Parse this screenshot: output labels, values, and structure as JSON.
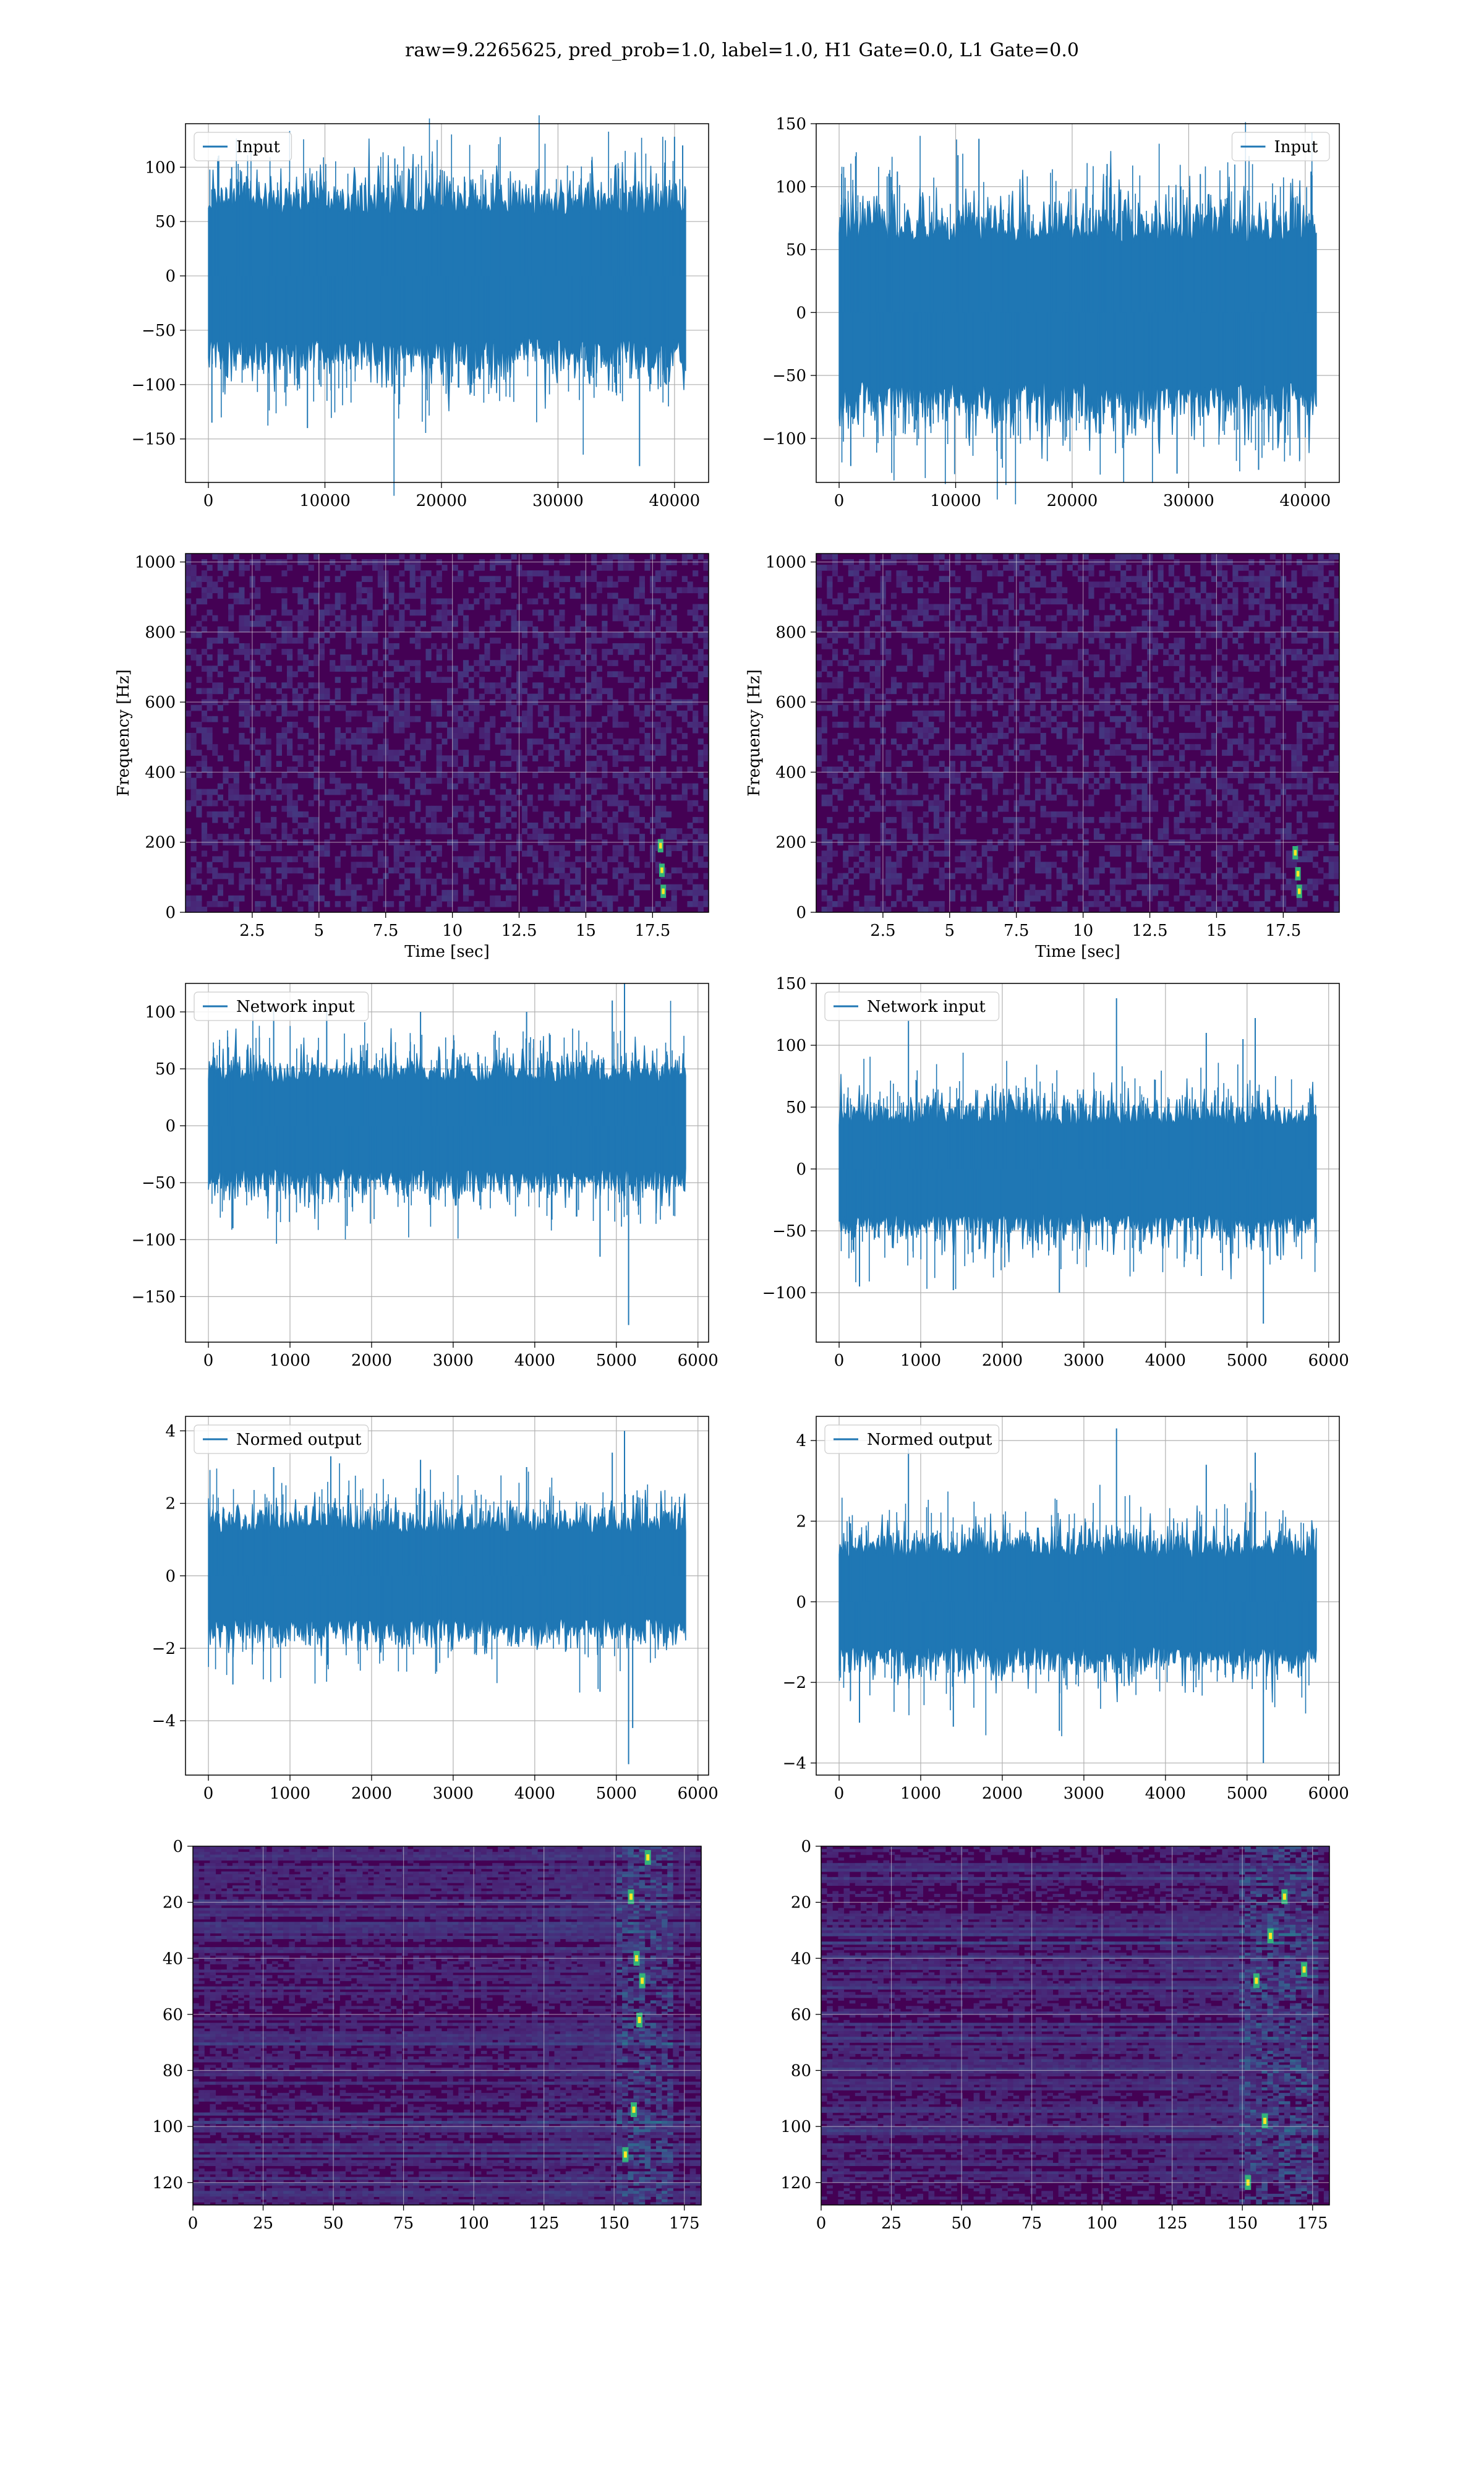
{
  "figure": {
    "suptitle": "raw=9.2265625, pred_prob=1.0, label=1.0, H1 Gate=0.0, L1 Gate=0.0"
  },
  "colors": {
    "line": "#1f77b4",
    "grid": "#b0b0b0",
    "viridis_low": "#440154",
    "viridis_mid": "#21918c",
    "viridis_high": "#fde725"
  },
  "chart_data": [
    {
      "id": "h1-input",
      "type": "line",
      "legend": "Input",
      "legend_loc": "upper-left",
      "x_range": [
        0,
        40960
      ],
      "ylim": [
        -190,
        140
      ],
      "xticks": [
        0,
        10000,
        20000,
        30000,
        40000
      ],
      "yticks": [
        100,
        50,
        0,
        -50,
        -100,
        -150
      ],
      "envelope": {
        "amp_base": 72,
        "spikes": [
          [
            800,
            108
          ],
          [
            2000,
            100
          ],
          [
            8500,
            -140
          ],
          [
            16000,
            108
          ],
          [
            37000,
            -175
          ],
          [
            40000,
            128
          ],
          [
            40700,
            120
          ],
          [
            39300,
            -100
          ],
          [
            300,
            -135
          ]
        ]
      }
    },
    {
      "id": "l1-input",
      "type": "line",
      "legend": "Input",
      "legend_loc": "upper-right",
      "x_range": [
        0,
        40960
      ],
      "ylim": [
        -135,
        150
      ],
      "xticks": [
        0,
        10000,
        20000,
        30000,
        40000
      ],
      "yticks": [
        150,
        100,
        50,
        0,
        -50,
        -100
      ],
      "envelope": {
        "amp_base": 70,
        "spikes": [
          [
            12000,
            138
          ],
          [
            10200,
            125
          ],
          [
            31000,
            110
          ],
          [
            29000,
            -128
          ],
          [
            1000,
            -122
          ],
          [
            36000,
            -125
          ],
          [
            23000,
            118
          ],
          [
            40500,
            112
          ],
          [
            5000,
            112
          ]
        ]
      }
    },
    {
      "id": "h1-spectrogram",
      "type": "heatmap",
      "xlabel": "Time [sec]",
      "ylabel": "Frequency [Hz]",
      "x_range": [
        0,
        19.6
      ],
      "ylim": [
        0,
        1024
      ],
      "xticks": [
        2.5,
        5.0,
        7.5,
        10.0,
        12.5,
        15.0,
        17.5
      ],
      "yticks": [
        0,
        200,
        400,
        600,
        800,
        1000
      ],
      "hotspots": [
        [
          17.9,
          60
        ],
        [
          17.85,
          120
        ],
        [
          17.8,
          190
        ]
      ]
    },
    {
      "id": "l1-spectrogram",
      "type": "heatmap",
      "xlabel": "Time [sec]",
      "ylabel": "Frequency [Hz]",
      "x_range": [
        0,
        19.6
      ],
      "ylim": [
        0,
        1024
      ],
      "xticks": [
        2.5,
        5.0,
        7.5,
        10.0,
        12.5,
        15.0,
        17.5
      ],
      "yticks": [
        0,
        200,
        400,
        600,
        800,
        1000
      ],
      "hotspots": [
        [
          18.1,
          60
        ],
        [
          18.05,
          110
        ],
        [
          17.95,
          170
        ]
      ]
    },
    {
      "id": "h1-network-input",
      "type": "line",
      "legend": "Network input",
      "legend_loc": "upper-left",
      "x_range": [
        0,
        5850
      ],
      "ylim": [
        -190,
        125
      ],
      "xticks": [
        0,
        1000,
        2000,
        3000,
        4000,
        5000,
        6000
      ],
      "yticks": [
        100,
        50,
        0,
        -50,
        -100,
        -150
      ],
      "envelope": {
        "amp_base": 48,
        "spikes": [
          [
            5150,
            -175
          ],
          [
            5100,
            125
          ],
          [
            4950,
            110
          ],
          [
            4800,
            -115
          ],
          [
            800,
            102
          ],
          [
            1450,
            105
          ],
          [
            2600,
            100
          ],
          [
            3900,
            100
          ],
          [
            300,
            -90
          ],
          [
            1700,
            -88
          ]
        ]
      }
    },
    {
      "id": "l1-network-input",
      "type": "line",
      "legend": "Network input",
      "legend_loc": "upper-left",
      "x_range": [
        0,
        5850
      ],
      "ylim": [
        -140,
        150
      ],
      "xticks": [
        0,
        1000,
        2000,
        3000,
        4000,
        5000,
        6000
      ],
      "yticks": [
        150,
        100,
        50,
        0,
        -50,
        -100
      ],
      "envelope": {
        "amp_base": 45,
        "spikes": [
          [
            3400,
            138
          ],
          [
            5100,
            122
          ],
          [
            850,
            120
          ],
          [
            5200,
            -125
          ],
          [
            2700,
            -100
          ],
          [
            1400,
            -98
          ],
          [
            4500,
            110
          ],
          [
            250,
            -95
          ],
          [
            4950,
            105
          ]
        ]
      }
    },
    {
      "id": "h1-normed-output",
      "type": "line",
      "legend": "Normed output",
      "legend_loc": "upper-left",
      "x_range": [
        0,
        5850
      ],
      "ylim": [
        -5.5,
        4.4
      ],
      "xticks": [
        0,
        1000,
        2000,
        3000,
        4000,
        5000,
        6000
      ],
      "yticks": [
        4,
        2,
        0,
        -2,
        -4
      ],
      "envelope": {
        "amp_base": 1.5,
        "spikes": [
          [
            5150,
            -5.2
          ],
          [
            5100,
            4.0
          ],
          [
            4950,
            3.4
          ],
          [
            4800,
            -3.2
          ],
          [
            1500,
            3.3
          ],
          [
            800,
            3.0
          ],
          [
            2600,
            3.2
          ],
          [
            3900,
            3.0
          ],
          [
            300,
            -3.0
          ],
          [
            5200,
            -4.2
          ]
        ]
      }
    },
    {
      "id": "l1-normed-output",
      "type": "line",
      "legend": "Normed output",
      "legend_loc": "upper-left",
      "x_range": [
        0,
        5850
      ],
      "ylim": [
        -4.3,
        4.6
      ],
      "xticks": [
        0,
        1000,
        2000,
        3000,
        4000,
        5000,
        6000
      ],
      "yticks": [
        4,
        2,
        0,
        -2,
        -4
      ],
      "envelope": {
        "amp_base": 1.4,
        "spikes": [
          [
            3400,
            4.3
          ],
          [
            5100,
            3.7
          ],
          [
            850,
            3.8
          ],
          [
            5200,
            -4.0
          ],
          [
            2700,
            -3.2
          ],
          [
            1400,
            -3.1
          ],
          [
            4500,
            3.4
          ],
          [
            250,
            -3.0
          ]
        ]
      }
    },
    {
      "id": "h1-feature-map",
      "type": "heatmap",
      "x_range": [
        0,
        181
      ],
      "ylim": [
        128,
        0
      ],
      "xticks": [
        0,
        25,
        50,
        75,
        100,
        125,
        150,
        175
      ],
      "yticks": [
        0,
        20,
        40,
        60,
        80,
        100,
        120
      ],
      "active_columns": [
        150,
        170
      ],
      "hotspots": [
        [
          156,
          18
        ],
        [
          158,
          40
        ],
        [
          160,
          48
        ],
        [
          159,
          62
        ],
        [
          157,
          94
        ],
        [
          162,
          4
        ],
        [
          154,
          110
        ]
      ]
    },
    {
      "id": "l1-feature-map",
      "type": "heatmap",
      "x_range": [
        0,
        181
      ],
      "ylim": [
        128,
        0
      ],
      "xticks": [
        0,
        25,
        50,
        75,
        100,
        125,
        150,
        175
      ],
      "yticks": [
        0,
        20,
        40,
        60,
        80,
        100,
        120
      ],
      "active_columns": [
        148,
        176
      ],
      "hotspots": [
        [
          155,
          48
        ],
        [
          165,
          18
        ],
        [
          160,
          32
        ],
        [
          172,
          44
        ],
        [
          158,
          98
        ],
        [
          152,
          120
        ]
      ]
    }
  ]
}
